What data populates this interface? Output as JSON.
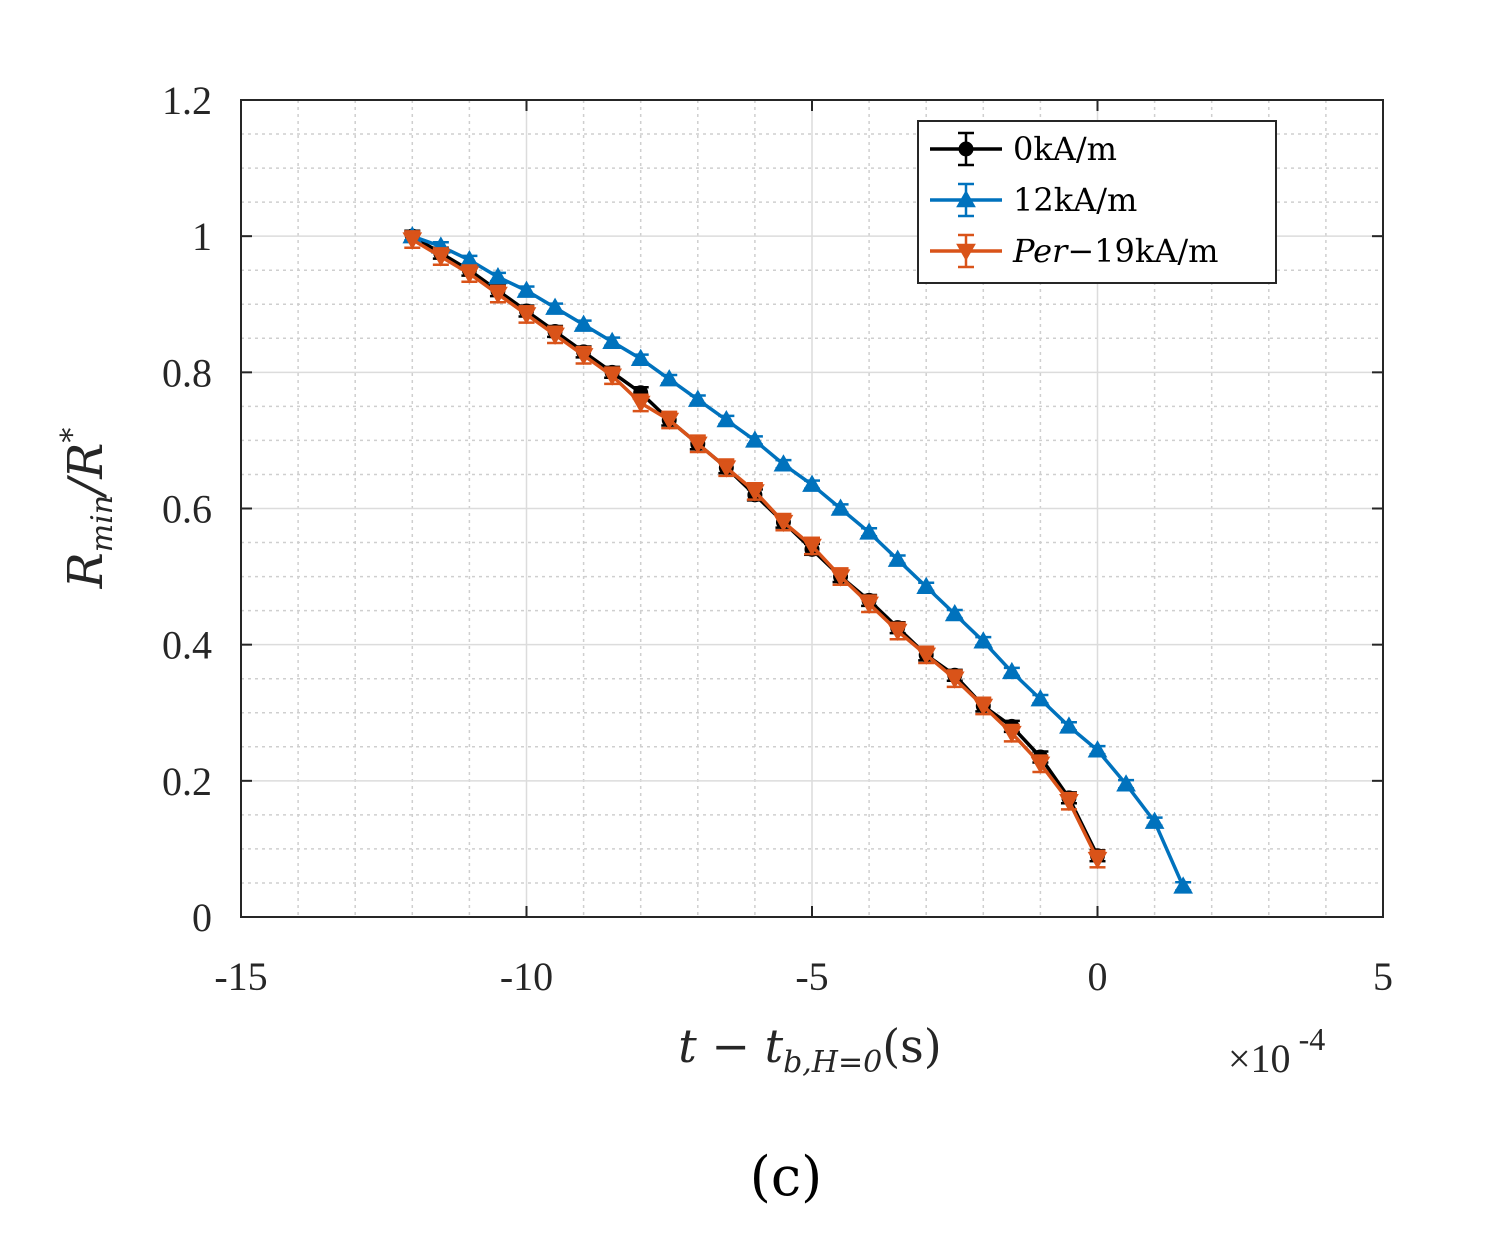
{
  "chart_data": {
    "type": "line",
    "title": "",
    "caption": "(c)",
    "xlabel": {
      "main": "t − t",
      "sub": "b,H=0",
      "unit": "(s)"
    },
    "ylabel": {
      "main": "R",
      "sub": "min",
      "rest": "/R",
      "sup": "*"
    },
    "x_multiplier": {
      "prefix": "×10",
      "exp": "-4"
    },
    "xlim": [
      -15,
      5
    ],
    "ylim": [
      0,
      1.2
    ],
    "xticks": [
      "-15",
      "-10",
      "-5",
      "0",
      "5"
    ],
    "yticks": [
      "0",
      "0.2",
      "0.4",
      "0.6",
      "0.8",
      "1",
      "1.2"
    ],
    "grid": true,
    "legend_position": "top-right",
    "series": [
      {
        "name": "0kA/m",
        "color": "#000000",
        "marker": "circle",
        "x": [
          -12,
          -11.5,
          -11,
          -10.5,
          -10,
          -9.5,
          -9,
          -8.5,
          -8,
          -7.5,
          -7,
          -6.5,
          -6,
          -5.5,
          -5,
          -4.5,
          -4,
          -3.5,
          -3,
          -2.5,
          -2,
          -1.5,
          -1,
          -0.5,
          0
        ],
        "y": [
          1.0,
          0.975,
          0.95,
          0.92,
          0.89,
          0.86,
          0.83,
          0.8,
          0.77,
          0.73,
          0.695,
          0.66,
          0.62,
          0.58,
          0.54,
          0.5,
          0.465,
          0.425,
          0.385,
          0.355,
          0.31,
          0.28,
          0.235,
          0.175,
          0.09
        ],
        "err": [
          0.008,
          0.008,
          0.008,
          0.008,
          0.008,
          0.008,
          0.008,
          0.008,
          0.008,
          0.008,
          0.008,
          0.008,
          0.008,
          0.008,
          0.008,
          0.008,
          0.008,
          0.008,
          0.008,
          0.008,
          0.008,
          0.008,
          0.008,
          0.008,
          0.008
        ]
      },
      {
        "name": "12kA/m",
        "color": "#0072BD",
        "marker": "triangle-up",
        "x": [
          -12,
          -11.5,
          -11,
          -10.5,
          -10,
          -9.5,
          -9,
          -8.5,
          -8,
          -7.5,
          -7,
          -6.5,
          -6,
          -5.5,
          -5,
          -4.5,
          -4,
          -3.5,
          -3,
          -2.5,
          -2,
          -1.5,
          -1,
          -0.5,
          0,
          0.5,
          1,
          1.5
        ],
        "y": [
          1.0,
          0.985,
          0.965,
          0.94,
          0.92,
          0.895,
          0.87,
          0.845,
          0.82,
          0.79,
          0.76,
          0.73,
          0.7,
          0.665,
          0.635,
          0.6,
          0.565,
          0.525,
          0.485,
          0.445,
          0.405,
          0.36,
          0.32,
          0.28,
          0.245,
          0.195,
          0.14,
          0.045
        ],
        "err": [
          0.006,
          0.006,
          0.006,
          0.006,
          0.006,
          0.006,
          0.006,
          0.006,
          0.006,
          0.006,
          0.006,
          0.006,
          0.006,
          0.006,
          0.006,
          0.006,
          0.006,
          0.006,
          0.006,
          0.006,
          0.006,
          0.006,
          0.006,
          0.006,
          0.006,
          0.006,
          0.006,
          0.006
        ]
      },
      {
        "name": "Per−19kA/m",
        "name_italic": "Per",
        "name_rest": "−19kA/m",
        "color": "#D95319",
        "marker": "triangle-down",
        "x": [
          -12,
          -11.5,
          -11,
          -10.5,
          -10,
          -9.5,
          -9,
          -8.5,
          -8,
          -7.5,
          -7,
          -6.5,
          -6,
          -5.5,
          -5,
          -4.5,
          -4,
          -3.5,
          -3,
          -2.5,
          -2,
          -1.5,
          -1,
          -0.5,
          0
        ],
        "y": [
          0.995,
          0.97,
          0.945,
          0.915,
          0.885,
          0.855,
          0.825,
          0.795,
          0.755,
          0.73,
          0.695,
          0.66,
          0.625,
          0.58,
          0.545,
          0.5,
          0.46,
          0.42,
          0.385,
          0.35,
          0.31,
          0.27,
          0.225,
          0.17,
          0.085
        ],
        "err": [
          0.012,
          0.012,
          0.012,
          0.012,
          0.012,
          0.012,
          0.012,
          0.012,
          0.012,
          0.012,
          0.012,
          0.012,
          0.012,
          0.012,
          0.012,
          0.012,
          0.012,
          0.012,
          0.012,
          0.012,
          0.012,
          0.012,
          0.012,
          0.012,
          0.012
        ]
      }
    ]
  }
}
